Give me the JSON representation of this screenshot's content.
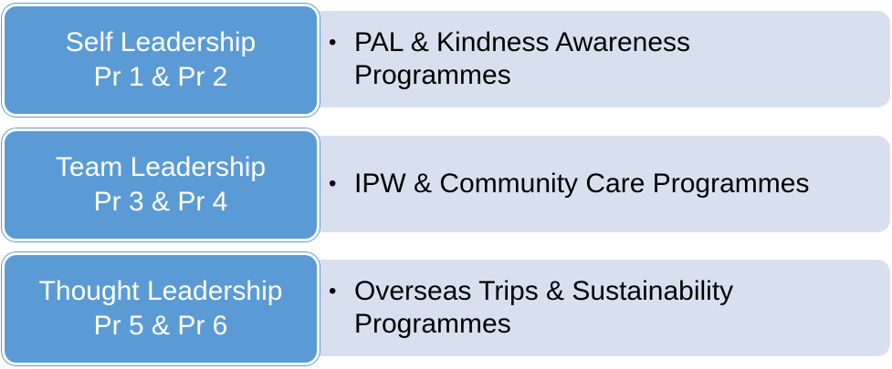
{
  "colors": {
    "label_fill": "#5b9bd5",
    "detail_fill": "#d8e0f0",
    "label_text": "#ffffff",
    "detail_text": "#000000"
  },
  "rows": [
    {
      "title": "Self Leadership",
      "subtitle": "Pr 1 & Pr 2",
      "bullet": "•",
      "detail_line1": "PAL & Kindness Awareness",
      "detail_line2": "Programmes"
    },
    {
      "title": "Team Leadership",
      "subtitle": "Pr 3 & Pr 4",
      "bullet": "•",
      "detail_line1": "IPW & Community Care Programmes",
      "detail_line2": ""
    },
    {
      "title": "Thought Leadership",
      "subtitle": "Pr 5 & Pr 6",
      "bullet": "•",
      "detail_line1": "Overseas Trips & Sustainability",
      "detail_line2": "Programmes"
    }
  ]
}
